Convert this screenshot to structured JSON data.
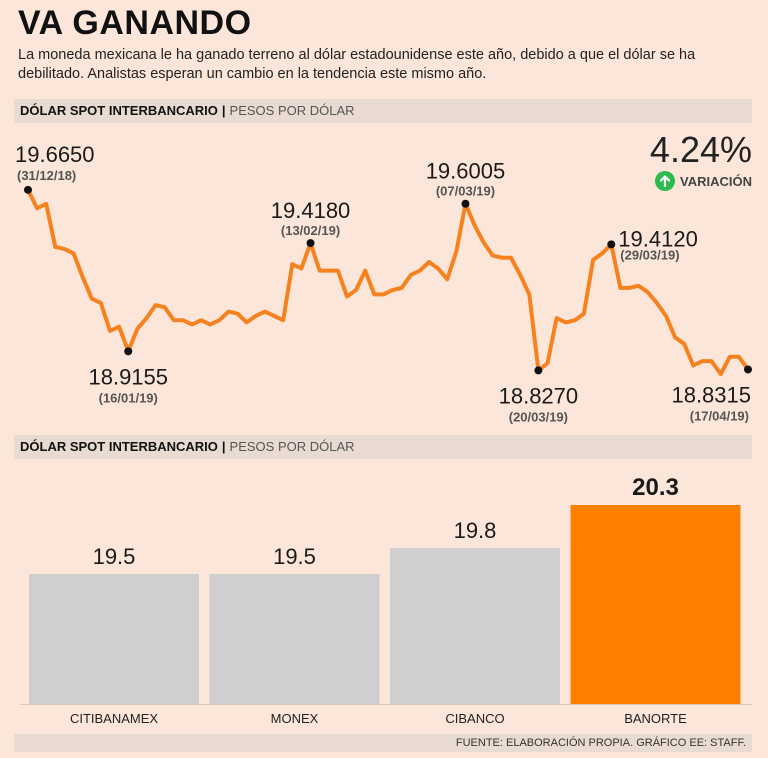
{
  "header": {
    "title": "VA GANANDO",
    "subtitle": "La moneda mexicana le ha ganado terreno al dólar estadounidense este año, debido a que el dólar se ha debilitado. Analistas esperan un cambio en la tendencia este mismo año."
  },
  "section1": {
    "label_bold": "DÓLAR SPOT INTERBANCARIO",
    "separator": "|",
    "label_light": "PESOS POR DÓLAR"
  },
  "section2": {
    "label_bold": "DÓLAR SPOT INTERBANCARIO",
    "separator": "|",
    "label_light": "PESOS POR DÓLAR"
  },
  "variation": {
    "value": "4.24%",
    "label": "VARIACIÓN"
  },
  "footer": {
    "source": "FUENTE: ELABORACIÓN PROPIA. GRÁFICO EE: STAFF."
  },
  "colors": {
    "line": "#f5821f",
    "bar_gray": "#cfcfcf",
    "bar_highlight": "#ff7f00",
    "up_arrow": "#2dbb4e",
    "background": "#fce6d9"
  },
  "chart_data": [
    {
      "type": "line",
      "title": "DÓLAR SPOT INTERBANCARIO | PESOS POR DÓLAR",
      "ylabel": "Pesos por dólar",
      "ylim": [
        18.75,
        19.72
      ],
      "values": [
        19.665,
        19.58,
        19.6,
        19.4,
        19.39,
        19.37,
        19.26,
        19.16,
        19.14,
        19.01,
        19.03,
        18.9155,
        19.02,
        19.07,
        19.13,
        19.12,
        19.06,
        19.06,
        19.04,
        19.06,
        19.04,
        19.06,
        19.1,
        19.09,
        19.05,
        19.08,
        19.1,
        19.08,
        19.06,
        19.32,
        19.3,
        19.418,
        19.29,
        19.29,
        19.29,
        19.17,
        19.2,
        19.29,
        19.18,
        19.18,
        19.2,
        19.21,
        19.27,
        19.29,
        19.33,
        19.3,
        19.25,
        19.38,
        19.6005,
        19.5,
        19.42,
        19.36,
        19.35,
        19.35,
        19.27,
        19.18,
        18.827,
        18.86,
        19.07,
        19.05,
        19.06,
        19.09,
        19.34,
        19.37,
        19.412,
        19.21,
        19.21,
        19.22,
        19.19,
        19.14,
        19.08,
        18.98,
        18.95,
        18.85,
        18.87,
        18.87,
        18.81,
        18.89,
        18.89,
        18.8315
      ],
      "annotations": [
        {
          "value": "19.6650",
          "date": "(31/12/18)"
        },
        {
          "value": "18.9155",
          "date": "(16/01/19)"
        },
        {
          "value": "19.4180",
          "date": "(13/02/19)"
        },
        {
          "value": "19.6005",
          "date": "(07/03/19)"
        },
        {
          "value": "18.8270",
          "date": "(20/03/19)"
        },
        {
          "value": "19.4120",
          "date": "(29/03/19)"
        },
        {
          "value": "18.8315",
          "date": "(17/04/19)"
        }
      ]
    },
    {
      "type": "bar",
      "title": "DÓLAR SPOT INTERBANCARIO | PESOS POR DÓLAR",
      "categories": [
        "CITIBANAMEX",
        "MONEX",
        "CIBANCO",
        "BANORTE"
      ],
      "values": [
        19.5,
        19.5,
        19.8,
        20.3
      ],
      "labels": [
        "19.5",
        "19.5",
        "19.8",
        "20.3"
      ],
      "highlight": "BANORTE"
    }
  ]
}
